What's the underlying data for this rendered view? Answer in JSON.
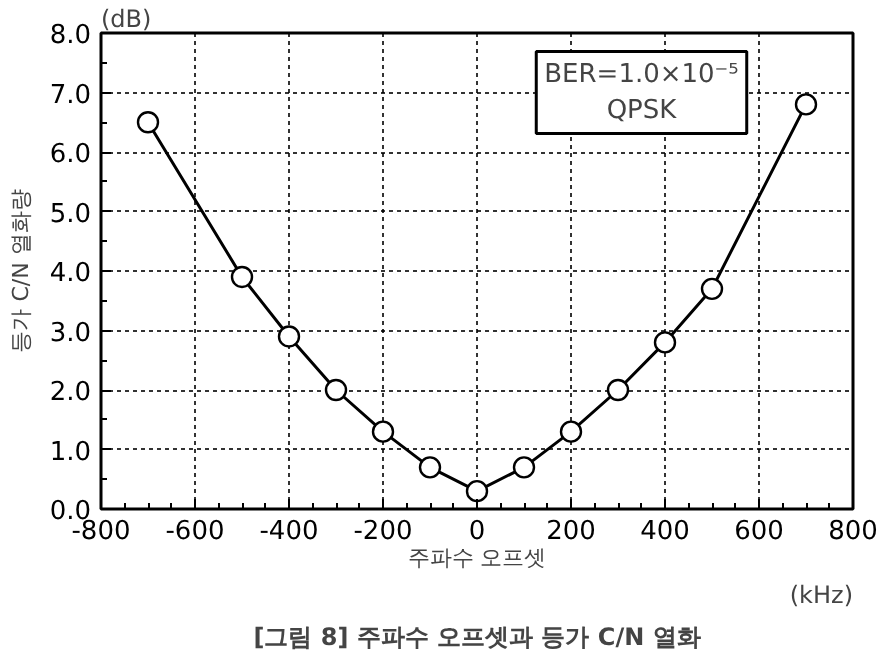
{
  "chart_data": {
    "type": "line",
    "title": "[그림 8] 주파수 오프셋과 등가 C/N 열화",
    "xlabel": "주파수 오프셋",
    "ylabel": "등가 C/N 열화량",
    "annotations": [
      "(dB)",
      "(kHz)",
      "BER=1.0×10⁻⁵\nQPSK"
    ],
    "x": [
      -700,
      -500,
      -400,
      -300,
      -200,
      -100,
      0,
      100,
      200,
      300,
      400,
      500,
      700
    ],
    "series": [
      {
        "color": "#000000",
        "values": [
          6.5,
          3.9,
          2.9,
          2.0,
          1.3,
          0.7,
          0.3,
          0.7,
          1.3,
          2.0,
          2.8,
          3.7,
          6.8
        ]
      }
    ],
    "xlim": [
      -800,
      800
    ],
    "xticks": [
      -800,
      -600,
      -400,
      -200,
      0,
      200,
      400,
      600,
      800
    ],
    "ylim": [
      0,
      8
    ],
    "yticks": [
      {
        "value": 0,
        "label": "0.0"
      },
      {
        "value": 1,
        "label": "1.0"
      },
      {
        "value": 2,
        "label": "2.0"
      },
      {
        "value": 3,
        "label": "3.0"
      },
      {
        "value": 4,
        "label": "4.0"
      },
      {
        "value": 5,
        "label": "5.0"
      },
      {
        "value": 6,
        "label": "6.0"
      },
      {
        "value": 7,
        "label": "7.0"
      },
      {
        "value": 8,
        "label": "8.0"
      }
    ],
    "grid": true,
    "marker": "circle",
    "line_style": "solid"
  }
}
